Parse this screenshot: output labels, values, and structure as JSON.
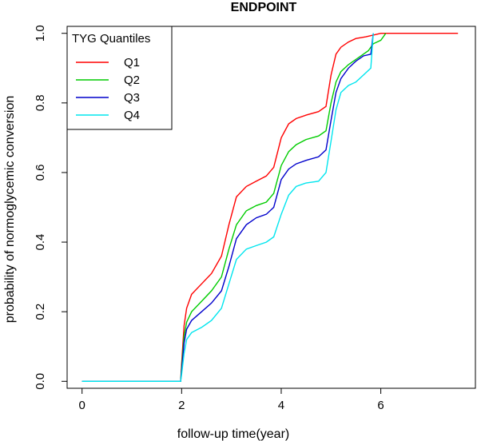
{
  "chart_data": {
    "type": "line",
    "title": "ENDPOINT",
    "xlabel": "follow-up time(year)",
    "ylabel": "probability of normoglycemic conversion",
    "xlim": [
      -0.3,
      7.9
    ],
    "ylim": [
      -0.02,
      1.02
    ],
    "xticks": [
      "0",
      "2",
      "4",
      "6"
    ],
    "yticks": [
      "0.0",
      "0.2",
      "0.4",
      "0.6",
      "0.8",
      "1.0"
    ],
    "legend": {
      "title": "TYG Quantiles",
      "position": "top-left"
    },
    "series": [
      {
        "name": "Q1",
        "color": "#ff0000",
        "points": [
          [
            0,
            0
          ],
          [
            1.98,
            0
          ],
          [
            2.0,
            0.05
          ],
          [
            2.05,
            0.16
          ],
          [
            2.1,
            0.21
          ],
          [
            2.2,
            0.25
          ],
          [
            2.4,
            0.28
          ],
          [
            2.6,
            0.31
          ],
          [
            2.8,
            0.36
          ],
          [
            2.95,
            0.45
          ],
          [
            3.1,
            0.53
          ],
          [
            3.3,
            0.56
          ],
          [
            3.5,
            0.575
          ],
          [
            3.7,
            0.59
          ],
          [
            3.85,
            0.615
          ],
          [
            4.0,
            0.7
          ],
          [
            4.15,
            0.74
          ],
          [
            4.3,
            0.755
          ],
          [
            4.5,
            0.765
          ],
          [
            4.75,
            0.775
          ],
          [
            4.9,
            0.79
          ],
          [
            5.0,
            0.88
          ],
          [
            5.1,
            0.94
          ],
          [
            5.2,
            0.96
          ],
          [
            5.35,
            0.975
          ],
          [
            5.5,
            0.985
          ],
          [
            5.7,
            0.99
          ],
          [
            5.85,
            0.995
          ],
          [
            6.0,
            1.0
          ],
          [
            7.55,
            1.0
          ]
        ]
      },
      {
        "name": "Q2",
        "color": "#00cc00",
        "points": [
          [
            0,
            0
          ],
          [
            1.98,
            0
          ],
          [
            2.0,
            0.04
          ],
          [
            2.05,
            0.13
          ],
          [
            2.1,
            0.17
          ],
          [
            2.2,
            0.2
          ],
          [
            2.4,
            0.23
          ],
          [
            2.6,
            0.26
          ],
          [
            2.8,
            0.3
          ],
          [
            2.95,
            0.38
          ],
          [
            3.1,
            0.45
          ],
          [
            3.3,
            0.49
          ],
          [
            3.5,
            0.505
          ],
          [
            3.7,
            0.515
          ],
          [
            3.85,
            0.54
          ],
          [
            4.0,
            0.62
          ],
          [
            4.15,
            0.66
          ],
          [
            4.3,
            0.68
          ],
          [
            4.5,
            0.695
          ],
          [
            4.75,
            0.705
          ],
          [
            4.9,
            0.72
          ],
          [
            5.0,
            0.8
          ],
          [
            5.1,
            0.86
          ],
          [
            5.2,
            0.89
          ],
          [
            5.35,
            0.91
          ],
          [
            5.55,
            0.93
          ],
          [
            5.75,
            0.95
          ],
          [
            5.85,
            0.97
          ],
          [
            6.0,
            0.98
          ],
          [
            6.05,
            0.99
          ],
          [
            6.1,
            1.0
          ]
        ]
      },
      {
        "name": "Q3",
        "color": "#0000cc",
        "points": [
          [
            0,
            0
          ],
          [
            1.98,
            0
          ],
          [
            2.0,
            0.03
          ],
          [
            2.05,
            0.11
          ],
          [
            2.1,
            0.15
          ],
          [
            2.2,
            0.175
          ],
          [
            2.4,
            0.2
          ],
          [
            2.6,
            0.225
          ],
          [
            2.8,
            0.26
          ],
          [
            2.95,
            0.33
          ],
          [
            3.1,
            0.41
          ],
          [
            3.3,
            0.45
          ],
          [
            3.5,
            0.47
          ],
          [
            3.7,
            0.48
          ],
          [
            3.85,
            0.5
          ],
          [
            4.0,
            0.58
          ],
          [
            4.15,
            0.61
          ],
          [
            4.3,
            0.625
          ],
          [
            4.5,
            0.635
          ],
          [
            4.75,
            0.645
          ],
          [
            4.9,
            0.665
          ],
          [
            5.0,
            0.75
          ],
          [
            5.1,
            0.83
          ],
          [
            5.2,
            0.87
          ],
          [
            5.35,
            0.9
          ],
          [
            5.5,
            0.92
          ],
          [
            5.65,
            0.935
          ],
          [
            5.8,
            0.94
          ],
          [
            5.85,
            1.0
          ]
        ]
      },
      {
        "name": "Q4",
        "color": "#00e5ee",
        "points": [
          [
            0,
            0
          ],
          [
            1.98,
            0
          ],
          [
            2.0,
            0.02
          ],
          [
            2.05,
            0.08
          ],
          [
            2.1,
            0.12
          ],
          [
            2.2,
            0.14
          ],
          [
            2.4,
            0.155
          ],
          [
            2.6,
            0.175
          ],
          [
            2.8,
            0.21
          ],
          [
            2.95,
            0.28
          ],
          [
            3.1,
            0.35
          ],
          [
            3.3,
            0.38
          ],
          [
            3.5,
            0.39
          ],
          [
            3.7,
            0.4
          ],
          [
            3.85,
            0.415
          ],
          [
            4.0,
            0.48
          ],
          [
            4.15,
            0.535
          ],
          [
            4.3,
            0.56
          ],
          [
            4.5,
            0.57
          ],
          [
            4.75,
            0.575
          ],
          [
            4.9,
            0.6
          ],
          [
            5.0,
            0.69
          ],
          [
            5.1,
            0.78
          ],
          [
            5.2,
            0.83
          ],
          [
            5.35,
            0.85
          ],
          [
            5.5,
            0.86
          ],
          [
            5.65,
            0.88
          ],
          [
            5.8,
            0.9
          ],
          [
            5.85,
            1.0
          ]
        ]
      }
    ]
  }
}
